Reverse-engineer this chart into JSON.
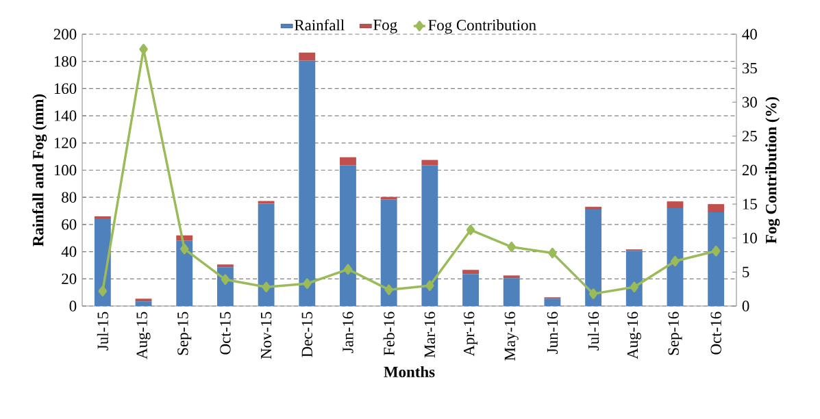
{
  "chart_data": {
    "type": "bar",
    "stacked": true,
    "xlabel": "Months",
    "ylabel": "Rainfall and Fog (mm)",
    "y2label": "Fog Contribution (%)",
    "categories": [
      "Jul-15",
      "Aug-15",
      "Sep-15",
      "Oct-15",
      "Nov-15",
      "Dec-15",
      "Jan-16",
      "Feb-16",
      "Mar-16",
      "Apr-16",
      "May-16",
      "Jun-16",
      "Jul-16",
      "Aug-16",
      "Sep-16",
      "Oct-16"
    ],
    "series": [
      {
        "name": "Rainfall",
        "color": "#4f81bd",
        "values": [
          64,
          3.4,
          48,
          28.6,
          75.3,
          180.5,
          103.5,
          78.3,
          103.5,
          23.6,
          20.5,
          5.4,
          71,
          40.7,
          72,
          69
        ]
      },
      {
        "name": "Fog",
        "color": "#c0504d",
        "values": [
          2,
          2,
          4,
          2,
          2,
          6,
          6,
          2,
          4,
          3,
          2,
          1,
          2,
          1,
          5,
          6
        ]
      },
      {
        "name": "Fog Contribution",
        "type": "line",
        "axis": "y2",
        "color": "#9bbb59",
        "marker": "diamond",
        "line_style": "solid",
        "values": [
          2.2,
          37.8,
          8.4,
          3.9,
          2.8,
          3.3,
          5.4,
          2.4,
          3.0,
          11.2,
          8.7,
          7.8,
          1.8,
          2.8,
          6.6,
          8.1
        ]
      }
    ],
    "ylim": [
      0,
      200
    ],
    "yticks": [
      0,
      20,
      40,
      60,
      80,
      100,
      120,
      140,
      160,
      180,
      200
    ],
    "y2lim": [
      0,
      40
    ],
    "y2ticks": [
      0,
      5,
      10,
      15,
      20,
      25,
      30,
      35,
      40
    ],
    "grid": "y",
    "legend": "top"
  }
}
